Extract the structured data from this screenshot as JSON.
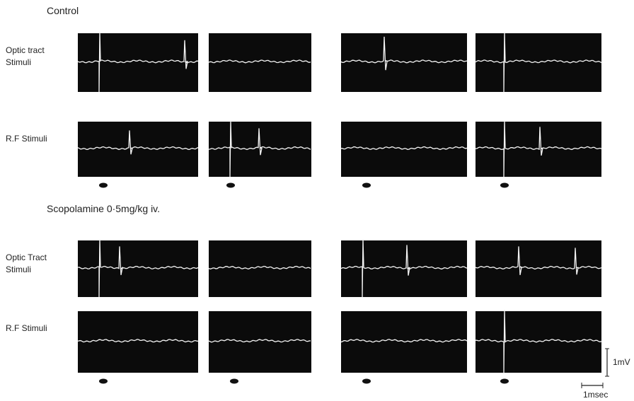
{
  "control_label": "Control",
  "treatment_label": "Scopolamine  0·5mg/kg iv.",
  "rows": [
    {
      "label_lines": [
        "Optic tract",
        "Stimuli"
      ]
    },
    {
      "label_lines": [
        "R.F  Stimuli"
      ]
    },
    {
      "label_lines": [
        "Optic Tract",
        "Stimuli"
      ]
    },
    {
      "label_lines": [
        "R.F  Stimuli"
      ]
    }
  ],
  "scale_bar": {
    "voltage": "1mV",
    "time": "1msec"
  }
}
